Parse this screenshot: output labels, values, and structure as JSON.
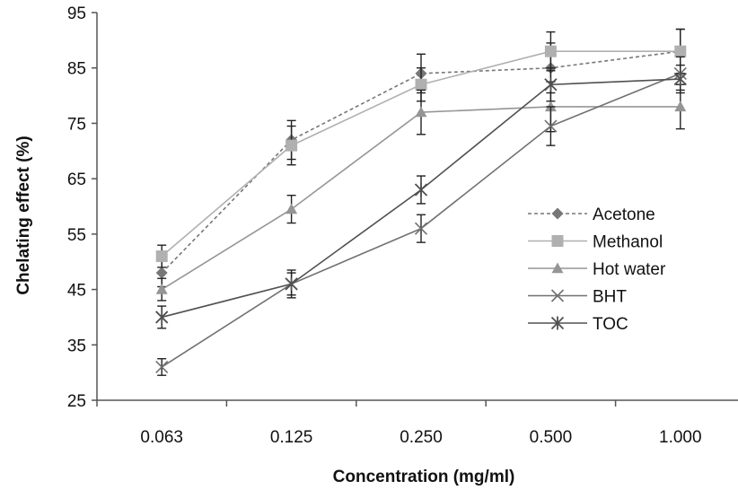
{
  "chart_data": {
    "type": "line",
    "title": "",
    "xlabel": "Concentration (mg/ml)",
    "ylabel": "Chelating effect (%)",
    "categories": [
      "0.063",
      "0.125",
      "0.250",
      "0.500",
      "1.000"
    ],
    "ylim": [
      25,
      95
    ],
    "yticks": [
      "25",
      "35",
      "45",
      "55",
      "65",
      "75",
      "85",
      "95"
    ],
    "grid": false,
    "legend_position": "right",
    "series": [
      {
        "name": "Acetone",
        "values": [
          48,
          72,
          84,
          85,
          88
        ],
        "errors": [
          2.5,
          3.5,
          3.5,
          4.5,
          4
        ],
        "color": "#777777",
        "dash": true,
        "marker": "diamond"
      },
      {
        "name": "Methanol",
        "values": [
          51,
          71,
          82,
          88,
          88
        ],
        "errors": [
          2,
          3.5,
          3,
          3.5,
          4
        ],
        "color": "#b0b0b0",
        "dash": false,
        "marker": "square"
      },
      {
        "name": "Hot water",
        "values": [
          45,
          59.5,
          77,
          78,
          78
        ],
        "errors": [
          2,
          2.5,
          4,
          4.5,
          4
        ],
        "color": "#959595",
        "dash": false,
        "marker": "triangle"
      },
      {
        "name": "BHT",
        "values": [
          31,
          46,
          56,
          74.5,
          84
        ],
        "errors": [
          1.5,
          2,
          2.5,
          3.5,
          3
        ],
        "color": "#707070",
        "dash": false,
        "marker": "x"
      },
      {
        "name": "TOC",
        "values": [
          40,
          46,
          63,
          82,
          83
        ],
        "errors": [
          2,
          2.5,
          2.5,
          3,
          2.5
        ],
        "color": "#505050",
        "dash": false,
        "marker": "star"
      }
    ]
  }
}
